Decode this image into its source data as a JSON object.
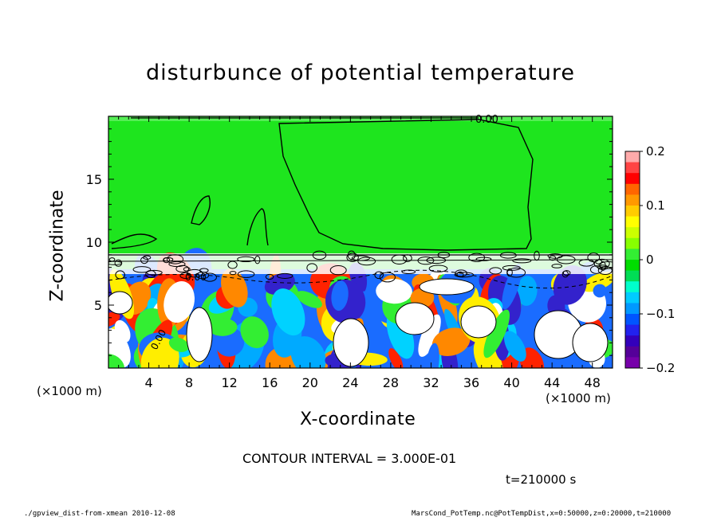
{
  "chart_data": {
    "type": "heatmap",
    "title": "disturbunce of potential temperature",
    "xlabel": "X-coordinate",
    "ylabel": "Z-coordinate",
    "x_unit": "(×1000 m)",
    "x_ticks": [
      4,
      8,
      12,
      16,
      20,
      24,
      28,
      32,
      36,
      40,
      44,
      48
    ],
    "y_ticks": [
      5,
      10,
      15
    ],
    "xlim": [
      0,
      50
    ],
    "ylim": [
      0,
      20
    ],
    "colorbar": {
      "ticks": [
        "0.2",
        "0.1",
        "0",
        "−0.1",
        "−0.2"
      ],
      "range": [
        -0.2,
        0.2
      ]
    },
    "contour_label": "0.00",
    "contour_interval": "CONTOUR INTERVAL = 3.000E-01",
    "time": "t=210000 s",
    "colors": {
      "upper_field": "#1ee51e",
      "mixed_field": [
        "#3322cc",
        "#1a6cff",
        "#00d2ff",
        "#33ee33",
        "#ffee00",
        "#ff8800",
        "#ff2200",
        "#ffffff"
      ]
    }
  },
  "footer": {
    "left": "./gpview_dist-from-xmean   2010-12-08",
    "right": "MarsCond_PotTemp.nc@PotTempDist,x=0:50000,z=0:20000,t=210000"
  }
}
